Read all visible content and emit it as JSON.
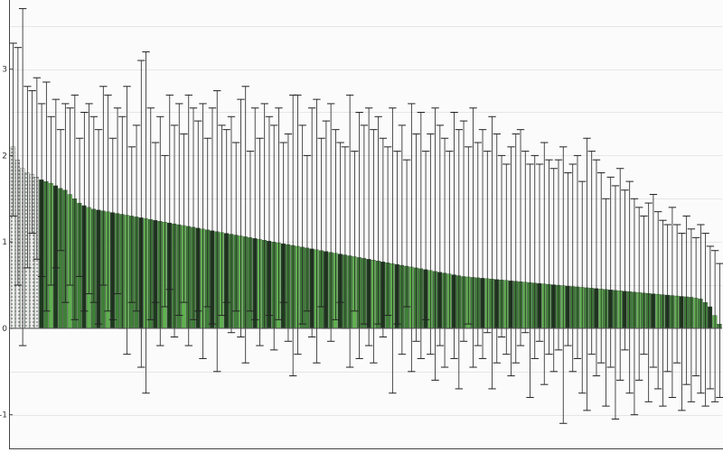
{
  "chart_data": {
    "type": "bar",
    "title": "",
    "xlabel": "",
    "ylabel": "",
    "ylim": [
      -1.4,
      3.8
    ],
    "yticks": [
      -1,
      0,
      1,
      2,
      3
    ],
    "ytick_labels": [
      "-1",
      "0",
      "1",
      "2",
      "3"
    ],
    "grid": true,
    "legend": "none",
    "colors": {
      "bar_dark": "#1e3a1e",
      "bar_green": "#3f7f38",
      "bar_light": "#5fb04f",
      "bar_pattern": "#d8d8d8",
      "error_bar": "#222222",
      "grid": "#e6e6e6",
      "zero_line": "#555555"
    },
    "n_bars": 150,
    "values": [
      2.1,
      1.95,
      1.85,
      1.8,
      1.78,
      1.75,
      1.72,
      1.7,
      1.68,
      1.65,
      1.62,
      1.6,
      1.55,
      1.5,
      1.45,
      1.42,
      1.4,
      1.38,
      1.37,
      1.36,
      1.35,
      1.34,
      1.33,
      1.32,
      1.31,
      1.3,
      1.29,
      1.28,
      1.27,
      1.26,
      1.25,
      1.24,
      1.23,
      1.22,
      1.21,
      1.2,
      1.19,
      1.18,
      1.17,
      1.16,
      1.15,
      1.14,
      1.13,
      1.12,
      1.11,
      1.1,
      1.09,
      1.08,
      1.07,
      1.06,
      1.05,
      1.04,
      1.03,
      1.02,
      1.01,
      1.0,
      0.99,
      0.98,
      0.97,
      0.96,
      0.95,
      0.94,
      0.93,
      0.92,
      0.91,
      0.9,
      0.89,
      0.88,
      0.87,
      0.86,
      0.85,
      0.84,
      0.83,
      0.82,
      0.81,
      0.8,
      0.79,
      0.78,
      0.77,
      0.76,
      0.75,
      0.74,
      0.73,
      0.72,
      0.71,
      0.7,
      0.69,
      0.68,
      0.67,
      0.66,
      0.65,
      0.64,
      0.63,
      0.62,
      0.61,
      0.6,
      0.595,
      0.59,
      0.585,
      0.58,
      0.575,
      0.57,
      0.565,
      0.56,
      0.555,
      0.55,
      0.545,
      0.54,
      0.535,
      0.53,
      0.525,
      0.52,
      0.515,
      0.51,
      0.505,
      0.5,
      0.495,
      0.49,
      0.485,
      0.48,
      0.475,
      0.47,
      0.465,
      0.46,
      0.455,
      0.45,
      0.445,
      0.44,
      0.435,
      0.43,
      0.425,
      0.42,
      0.415,
      0.41,
      0.405,
      0.4,
      0.395,
      0.39,
      0.385,
      0.38,
      0.375,
      0.37,
      0.365,
      0.36,
      0.35,
      0.34,
      0.3,
      0.25,
      0.15,
      0.05
    ],
    "error_upper": [
      3.3,
      3.25,
      3.7,
      2.8,
      2.75,
      2.9,
      2.6,
      2.85,
      2.45,
      2.65,
      2.3,
      2.6,
      2.55,
      2.7,
      2.2,
      2.5,
      2.6,
      2.45,
      2.3,
      2.8,
      2.7,
      2.2,
      2.55,
      2.45,
      2.8,
      2.1,
      2.35,
      3.1,
      3.2,
      2.55,
      2.15,
      2.45,
      2.0,
      2.7,
      2.35,
      2.6,
      2.25,
      2.7,
      2.55,
      2.4,
      2.6,
      2.2,
      2.55,
      2.75,
      2.35,
      2.3,
      2.45,
      2.15,
      2.65,
      2.8,
      2.05,
      2.55,
      2.2,
      2.6,
      2.45,
      2.35,
      2.55,
      2.15,
      2.25,
      2.7,
      2.7,
      2.35,
      2.0,
      2.55,
      2.65,
      2.2,
      2.4,
      2.6,
      2.3,
      2.15,
      2.1,
      2.7,
      2.05,
      2.5,
      2.35,
      2.55,
      2.3,
      2.45,
      2.2,
      2.1,
      2.55,
      2.05,
      2.35,
      1.95,
      2.6,
      2.25,
      2.5,
      2.05,
      2.25,
      2.55,
      2.35,
      2.2,
      2.05,
      2.5,
      2.3,
      2.4,
      2.1,
      2.55,
      2.15,
      2.3,
      2.05,
      2.45,
      2.25,
      2.0,
      1.9,
      2.1,
      2.25,
      2.3,
      2.05,
      1.9,
      2.0,
      1.9,
      2.15,
      1.95,
      1.85,
      1.95,
      2.1,
      1.8,
      1.9,
      2.0,
      1.7,
      2.2,
      2.05,
      1.95,
      1.8,
      1.5,
      1.75,
      1.65,
      1.85,
      1.6,
      1.7,
      1.5,
      1.4,
      1.3,
      1.45,
      1.55,
      1.35,
      1.25,
      1.2,
      1.4,
      1.2,
      1.1,
      1.3,
      1.15,
      1.05,
      1.2,
      1.1,
      0.95,
      0.9,
      0.75
    ],
    "error_lower": [
      1.3,
      0.5,
      -0.2,
      0.7,
      1.1,
      0.8,
      0.6,
      0.2,
      0.5,
      0.7,
      0.9,
      0.3,
      0.5,
      0.1,
      0.6,
      0.2,
      0.4,
      0.3,
      0.05,
      0.5,
      0.2,
      0.1,
      0.4,
      0.0,
      -0.3,
      0.3,
      0.2,
      -0.45,
      -0.75,
      0.1,
      0.3,
      -0.2,
      0.25,
      0.45,
      -0.1,
      0.15,
      0.3,
      -0.2,
      0.1,
      0.2,
      -0.35,
      0.25,
      0.05,
      -0.5,
      0.15,
      0.3,
      -0.05,
      0.2,
      -0.1,
      -0.4,
      0.2,
      0.1,
      -0.2,
      0.0,
      0.15,
      -0.25,
      0.1,
      0.3,
      -0.15,
      -0.55,
      -0.3,
      0.05,
      0.2,
      -0.1,
      -0.4,
      0.25,
      0.0,
      -0.15,
      0.1,
      0.3,
      0.0,
      -0.45,
      0.2,
      -0.35,
      0.05,
      -0.2,
      -0.4,
      0.05,
      -0.1,
      0.15,
      -0.75,
      0.05,
      -0.3,
      0.25,
      -0.5,
      -0.15,
      -0.35,
      0.1,
      -0.3,
      -0.6,
      -0.2,
      -0.45,
      0.0,
      -0.35,
      -0.7,
      -0.15,
      0.05,
      -0.45,
      -0.2,
      -0.35,
      -0.05,
      -0.7,
      -0.4,
      -0.1,
      -0.3,
      -0.55,
      -0.4,
      -0.2,
      -0.05,
      -0.8,
      -0.35,
      -0.15,
      -0.65,
      -0.3,
      -0.5,
      -0.25,
      -1.1,
      -0.2,
      -0.5,
      -0.35,
      -0.75,
      -0.95,
      -0.3,
      -0.55,
      -0.4,
      -0.9,
      -0.45,
      -1.05,
      -0.6,
      -0.25,
      -0.75,
      -1.0,
      -0.6,
      -0.3,
      -0.85,
      -0.45,
      -0.7,
      -0.9,
      -0.5,
      -0.8,
      -0.4,
      -0.95,
      -0.65,
      -0.85,
      -0.55,
      -0.75,
      -0.9,
      -0.7,
      -0.85,
      -0.8
    ]
  }
}
